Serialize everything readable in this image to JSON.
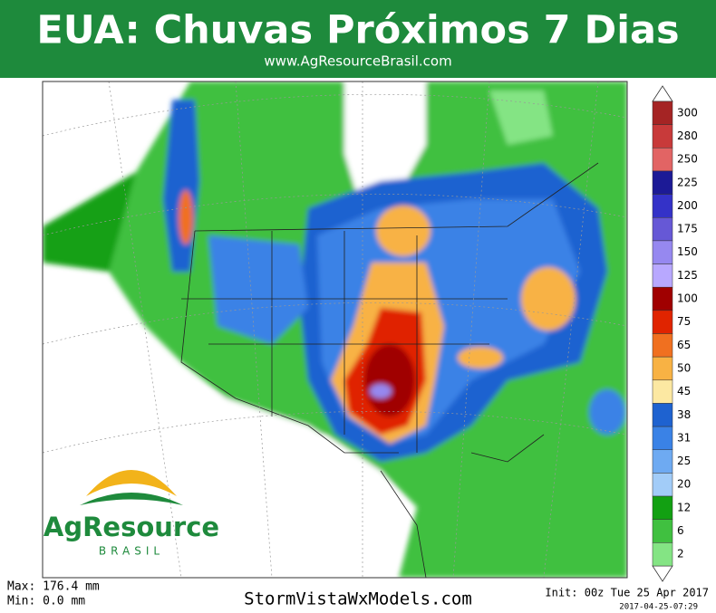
{
  "header": {
    "title": "EUA: Chuvas Próximos 7 Dias",
    "subtitle": "www.AgResourceBrasil.com"
  },
  "legend": {
    "items": [
      {
        "label": "300",
        "color": "#a52424"
      },
      {
        "label": "280",
        "color": "#c83a3a"
      },
      {
        "label": "250",
        "color": "#e26464"
      },
      {
        "label": "225",
        "color": "#1c1a96"
      },
      {
        "label": "200",
        "color": "#3432c8"
      },
      {
        "label": "175",
        "color": "#6658d6"
      },
      {
        "label": "150",
        "color": "#9688f0"
      },
      {
        "label": "125",
        "color": "#b8a8ff"
      },
      {
        "label": "100",
        "color": "#a00000"
      },
      {
        "label": "75",
        "color": "#e02400"
      },
      {
        "label": "65",
        "color": "#f07020"
      },
      {
        "label": "50",
        "color": "#f8b244"
      },
      {
        "label": "45",
        "color": "#fce8a2"
      },
      {
        "label": "38",
        "color": "#1e62d0"
      },
      {
        "label": "31",
        "color": "#3a82e6"
      },
      {
        "label": "25",
        "color": "#6eaaf2"
      },
      {
        "label": "20",
        "color": "#a2ccf8"
      },
      {
        "label": "12",
        "color": "#12a012"
      },
      {
        "label": "6",
        "color": "#40c040"
      },
      {
        "label": "2",
        "color": "#84e484"
      }
    ]
  },
  "logo": {
    "name": "AgResource",
    "tagline": "BRASIL"
  },
  "footer": {
    "max": "Max: 176.4 mm",
    "min": "Min: 0.0 mm",
    "source": "StormVistaWxModels.com",
    "init": "Init: 00z Tue 25 Apr 2017",
    "timestamp": "2017-04-25-07:29"
  }
}
